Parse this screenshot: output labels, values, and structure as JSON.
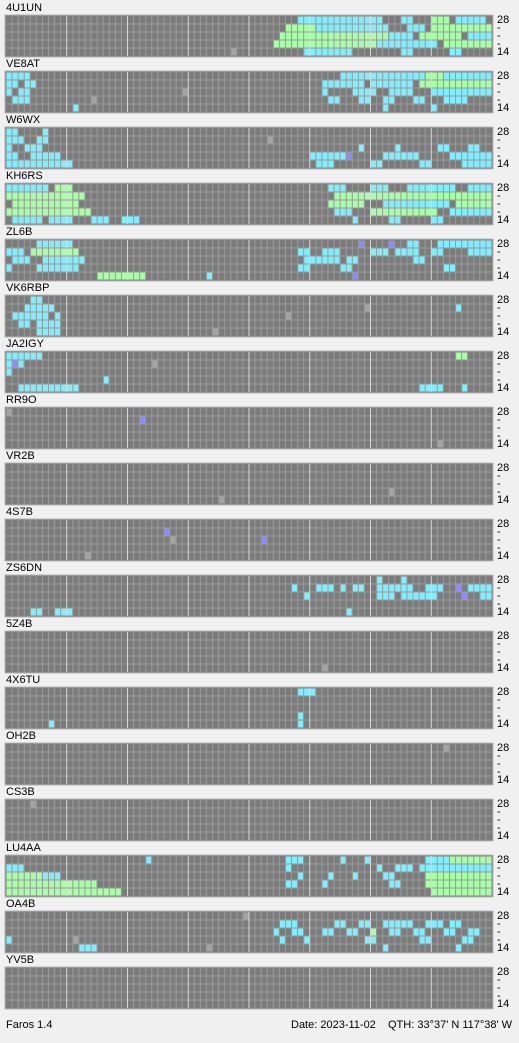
{
  "band_labels": [
    "28",
    "-",
    "-",
    "-",
    "14"
  ],
  "level_colors": [
    "#7c7c7c",
    "#a4a4a4",
    "#8c8cff",
    "#80eeff",
    "#a8ffa8"
  ],
  "panels": [
    {
      "name": "4U1UN",
      "cells": [
        [
          0,
          48,
          61,
          3
        ],
        [
          0,
          65,
          66,
          3
        ],
        [
          0,
          70,
          72,
          4
        ],
        [
          0,
          74,
          78,
          3
        ],
        [
          1,
          46,
          50,
          4
        ],
        [
          1,
          51,
          62,
          3
        ],
        [
          1,
          66,
          68,
          3
        ],
        [
          1,
          70,
          79,
          4
        ],
        [
          2,
          45,
          62,
          4
        ],
        [
          2,
          63,
          66,
          3
        ],
        [
          2,
          68,
          74,
          4
        ],
        [
          2,
          76,
          79,
          3
        ],
        [
          3,
          44,
          60,
          4
        ],
        [
          3,
          61,
          70,
          3
        ],
        [
          3,
          72,
          79,
          4
        ],
        [
          4,
          37,
          37,
          1
        ],
        [
          4,
          49,
          56,
          3
        ],
        [
          4,
          65,
          66,
          3
        ],
        [
          4,
          73,
          74,
          3
        ]
      ]
    },
    {
      "name": "VE8AT",
      "cells": [
        [
          0,
          0,
          3,
          3
        ],
        [
          1,
          0,
          1,
          3
        ],
        [
          1,
          3,
          4,
          3
        ],
        [
          2,
          0,
          0,
          3
        ],
        [
          2,
          2,
          3,
          3
        ],
        [
          3,
          1,
          3,
          3
        ],
        [
          4,
          11,
          11,
          3
        ],
        [
          3,
          14,
          14,
          1
        ],
        [
          2,
          29,
          29,
          1
        ],
        [
          0,
          55,
          68,
          3
        ],
        [
          0,
          69,
          71,
          4
        ],
        [
          0,
          72,
          79,
          3
        ],
        [
          1,
          52,
          58,
          3
        ],
        [
          1,
          60,
          66,
          3
        ],
        [
          1,
          68,
          79,
          4
        ],
        [
          2,
          52,
          52,
          3
        ],
        [
          2,
          57,
          60,
          3
        ],
        [
          2,
          63,
          66,
          3
        ],
        [
          2,
          70,
          79,
          3
        ],
        [
          3,
          53,
          54,
          3
        ],
        [
          3,
          58,
          59,
          3
        ],
        [
          3,
          62,
          63,
          3
        ],
        [
          3,
          67,
          68,
          3
        ],
        [
          3,
          72,
          75,
          3
        ],
        [
          4,
          62,
          62,
          3
        ],
        [
          4,
          70,
          70,
          3
        ]
      ]
    },
    {
      "name": "W6WX",
      "cells": [
        [
          0,
          0,
          1,
          3
        ],
        [
          0,
          6,
          6,
          3
        ],
        [
          1,
          0,
          2,
          3
        ],
        [
          1,
          5,
          6,
          3
        ],
        [
          2,
          0,
          0,
          3
        ],
        [
          2,
          3,
          5,
          3
        ],
        [
          3,
          0,
          1,
          3
        ],
        [
          3,
          4,
          8,
          3
        ],
        [
          4,
          0,
          10,
          3
        ],
        [
          1,
          43,
          43,
          1
        ],
        [
          2,
          58,
          58,
          3
        ],
        [
          2,
          64,
          64,
          3
        ],
        [
          2,
          71,
          72,
          3
        ],
        [
          2,
          76,
          77,
          3
        ],
        [
          3,
          50,
          55,
          3
        ],
        [
          3,
          56,
          56,
          2
        ],
        [
          3,
          62,
          67,
          3
        ],
        [
          3,
          73,
          79,
          3
        ],
        [
          4,
          51,
          53,
          3
        ],
        [
          4,
          60,
          61,
          3
        ],
        [
          4,
          68,
          69,
          3
        ],
        [
          4,
          75,
          79,
          3
        ]
      ]
    },
    {
      "name": "KH6RS",
      "cells": [
        [
          0,
          0,
          6,
          3
        ],
        [
          0,
          8,
          10,
          4
        ],
        [
          1,
          0,
          12,
          4
        ],
        [
          2,
          1,
          11,
          4
        ],
        [
          3,
          0,
          13,
          4
        ],
        [
          4,
          1,
          5,
          3
        ],
        [
          4,
          7,
          10,
          3
        ],
        [
          4,
          14,
          16,
          3
        ],
        [
          4,
          19,
          21,
          3
        ],
        [
          0,
          53,
          55,
          3
        ],
        [
          0,
          60,
          62,
          3
        ],
        [
          0,
          66,
          73,
          3
        ],
        [
          0,
          76,
          79,
          3
        ],
        [
          1,
          54,
          79,
          4
        ],
        [
          2,
          53,
          58,
          4
        ],
        [
          2,
          62,
          72,
          3
        ],
        [
          2,
          74,
          79,
          4
        ],
        [
          3,
          54,
          56,
          3
        ],
        [
          3,
          60,
          70,
          4
        ],
        [
          3,
          73,
          79,
          3
        ],
        [
          4,
          57,
          57,
          3
        ],
        [
          4,
          63,
          64,
          3
        ],
        [
          4,
          70,
          71,
          3
        ]
      ]
    },
    {
      "name": "ZL6B",
      "cells": [
        [
          0,
          5,
          10,
          3
        ],
        [
          1,
          0,
          2,
          3
        ],
        [
          1,
          4,
          11,
          4
        ],
        [
          2,
          1,
          3,
          3
        ],
        [
          2,
          6,
          12,
          3
        ],
        [
          3,
          0,
          0,
          3
        ],
        [
          3,
          5,
          11,
          3
        ],
        [
          4,
          15,
          22,
          4
        ],
        [
          4,
          33,
          33,
          3
        ],
        [
          0,
          58,
          58,
          2
        ],
        [
          0,
          63,
          63,
          2
        ],
        [
          0,
          66,
          67,
          3
        ],
        [
          0,
          71,
          79,
          3
        ],
        [
          1,
          48,
          49,
          3
        ],
        [
          1,
          52,
          54,
          3
        ],
        [
          1,
          60,
          62,
          3
        ],
        [
          1,
          64,
          67,
          3
        ],
        [
          1,
          70,
          71,
          3
        ],
        [
          1,
          76,
          79,
          3
        ],
        [
          2,
          49,
          54,
          3
        ],
        [
          2,
          56,
          57,
          3
        ],
        [
          2,
          67,
          68,
          3
        ],
        [
          3,
          48,
          49,
          3
        ],
        [
          3,
          55,
          56,
          3
        ],
        [
          3,
          72,
          73,
          3
        ],
        [
          4,
          57,
          57,
          2
        ]
      ]
    },
    {
      "name": "VK6RBP",
      "cells": [
        [
          0,
          4,
          5,
          3
        ],
        [
          1,
          3,
          7,
          3
        ],
        [
          2,
          1,
          6,
          3
        ],
        [
          2,
          8,
          8,
          3
        ],
        [
          3,
          2,
          3,
          3
        ],
        [
          3,
          5,
          8,
          3
        ],
        [
          4,
          5,
          8,
          3
        ],
        [
          4,
          34,
          34,
          1
        ],
        [
          2,
          46,
          46,
          1
        ],
        [
          1,
          59,
          59,
          1
        ],
        [
          1,
          74,
          74,
          3
        ]
      ]
    },
    {
      "name": "JA2IGY",
      "cells": [
        [
          0,
          0,
          5,
          3
        ],
        [
          1,
          0,
          2,
          3
        ],
        [
          1,
          1,
          1,
          2
        ],
        [
          2,
          0,
          0,
          3
        ],
        [
          3,
          16,
          16,
          3
        ],
        [
          4,
          2,
          11,
          3
        ],
        [
          1,
          24,
          24,
          1
        ],
        [
          0,
          74,
          75,
          4
        ],
        [
          4,
          68,
          71,
          3
        ],
        [
          4,
          75,
          75,
          3
        ]
      ]
    },
    {
      "name": "RR9O",
      "cells": [
        [
          0,
          0,
          0,
          1
        ],
        [
          1,
          22,
          22,
          2
        ],
        [
          4,
          71,
          71,
          1
        ]
      ]
    },
    {
      "name": "VR2B",
      "cells": [
        [
          4,
          35,
          35,
          1
        ],
        [
          3,
          63,
          63,
          1
        ]
      ]
    },
    {
      "name": "4S7B",
      "cells": [
        [
          1,
          26,
          26,
          2
        ],
        [
          2,
          27,
          27,
          1
        ],
        [
          4,
          13,
          13,
          1
        ],
        [
          2,
          42,
          42,
          2
        ]
      ]
    },
    {
      "name": "ZS6DN",
      "cells": [
        [
          0,
          61,
          61,
          3
        ],
        [
          0,
          65,
          65,
          3
        ],
        [
          1,
          47,
          47,
          3
        ],
        [
          1,
          51,
          53,
          3
        ],
        [
          1,
          55,
          55,
          3
        ],
        [
          1,
          57,
          58,
          3
        ],
        [
          1,
          61,
          66,
          3
        ],
        [
          1,
          69,
          71,
          3
        ],
        [
          1,
          74,
          74,
          2
        ],
        [
          1,
          76,
          79,
          3
        ],
        [
          2,
          49,
          49,
          3
        ],
        [
          2,
          61,
          63,
          3
        ],
        [
          2,
          65,
          70,
          3
        ],
        [
          2,
          75,
          75,
          2
        ],
        [
          2,
          78,
          79,
          3
        ],
        [
          4,
          4,
          5,
          3
        ],
        [
          4,
          8,
          10,
          3
        ],
        [
          4,
          56,
          56,
          3
        ]
      ]
    },
    {
      "name": "5Z4B",
      "cells": [
        [
          4,
          52,
          52,
          1
        ]
      ]
    },
    {
      "name": "4X6TU",
      "cells": [
        [
          0,
          48,
          50,
          3
        ],
        [
          3,
          48,
          48,
          3
        ],
        [
          4,
          48,
          48,
          3
        ],
        [
          4,
          7,
          7,
          3
        ]
      ]
    },
    {
      "name": "OH2B",
      "cells": [
        [
          0,
          72,
          72,
          1
        ]
      ]
    },
    {
      "name": "CS3B",
      "cells": [
        [
          0,
          4,
          4,
          1
        ]
      ]
    },
    {
      "name": "LU4AA",
      "cells": [
        [
          0,
          23,
          23,
          3
        ],
        [
          1,
          0,
          2,
          3
        ],
        [
          2,
          0,
          5,
          4
        ],
        [
          2,
          6,
          8,
          3
        ],
        [
          3,
          0,
          14,
          4
        ],
        [
          4,
          0,
          18,
          4
        ],
        [
          0,
          46,
          48,
          3
        ],
        [
          0,
          55,
          55,
          3
        ],
        [
          0,
          59,
          59,
          3
        ],
        [
          0,
          69,
          72,
          3
        ],
        [
          0,
          73,
          79,
          4
        ],
        [
          1,
          46,
          46,
          3
        ],
        [
          1,
          61,
          61,
          3
        ],
        [
          1,
          64,
          66,
          3
        ],
        [
          1,
          68,
          79,
          3
        ],
        [
          2,
          48,
          48,
          3
        ],
        [
          2,
          53,
          53,
          3
        ],
        [
          2,
          57,
          57,
          3
        ],
        [
          2,
          62,
          63,
          3
        ],
        [
          2,
          69,
          79,
          4
        ],
        [
          3,
          46,
          47,
          3
        ],
        [
          3,
          52,
          52,
          3
        ],
        [
          3,
          63,
          64,
          3
        ],
        [
          3,
          69,
          79,
          4
        ],
        [
          4,
          70,
          79,
          4
        ]
      ]
    },
    {
      "name": "OA4B",
      "cells": [
        [
          0,
          39,
          39,
          1
        ],
        [
          1,
          45,
          47,
          3
        ],
        [
          1,
          54,
          55,
          3
        ],
        [
          1,
          58,
          59,
          3
        ],
        [
          1,
          62,
          66,
          3
        ],
        [
          1,
          69,
          71,
          3
        ],
        [
          1,
          73,
          74,
          3
        ],
        [
          2,
          44,
          44,
          3
        ],
        [
          2,
          47,
          48,
          3
        ],
        [
          2,
          52,
          53,
          3
        ],
        [
          2,
          56,
          57,
          3
        ],
        [
          2,
          60,
          60,
          4
        ],
        [
          2,
          63,
          64,
          3
        ],
        [
          2,
          67,
          68,
          3
        ],
        [
          2,
          72,
          73,
          3
        ],
        [
          2,
          76,
          77,
          3
        ],
        [
          3,
          0,
          0,
          3
        ],
        [
          3,
          11,
          11,
          1
        ],
        [
          3,
          45,
          45,
          3
        ],
        [
          3,
          49,
          49,
          3
        ],
        [
          3,
          59,
          60,
          3
        ],
        [
          3,
          68,
          69,
          3
        ],
        [
          3,
          75,
          76,
          3
        ],
        [
          4,
          12,
          14,
          3
        ],
        [
          4,
          33,
          33,
          1
        ],
        [
          4,
          62,
          62,
          3
        ],
        [
          4,
          74,
          74,
          3
        ]
      ]
    },
    {
      "name": "YV5B",
      "cells": []
    }
  ],
  "footer": {
    "app": "Faros 1.4",
    "date": "Date: 2023-11-02",
    "qth": "QTH: 33°37' N  117°38' W"
  }
}
